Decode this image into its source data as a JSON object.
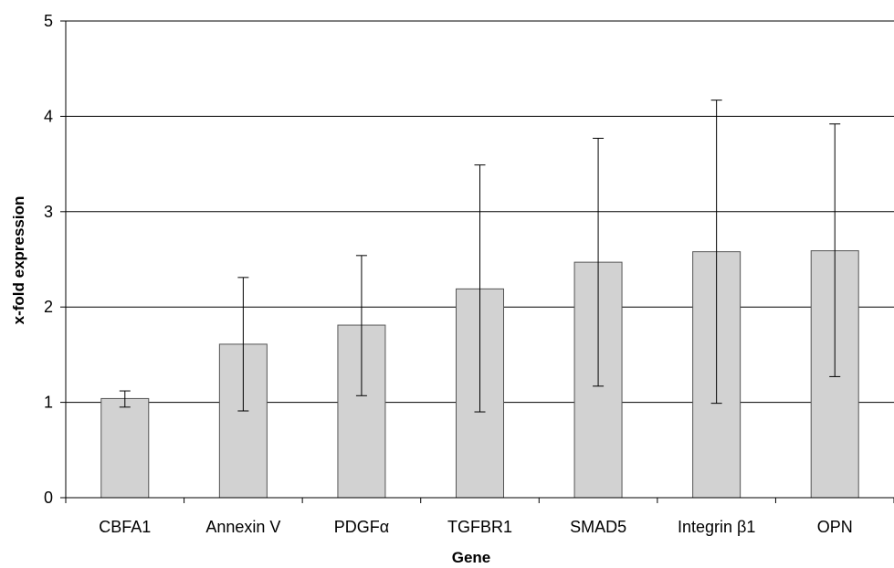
{
  "chart_data": {
    "type": "bar",
    "title": "",
    "xlabel": "Gene",
    "ylabel": "x-fold expression",
    "ylim": [
      0,
      5
    ],
    "yticks": [
      0,
      1,
      2,
      3,
      4,
      5
    ],
    "grid": true,
    "categories": [
      "CBFA1",
      "Annexin V",
      "PDGFα",
      "TGFBR1",
      "SMAD5",
      "Integrin β1",
      "OPN"
    ],
    "values": [
      1.04,
      1.61,
      1.81,
      2.19,
      2.47,
      2.58,
      2.59
    ],
    "error_low": [
      0.95,
      0.91,
      1.07,
      0.9,
      1.17,
      0.99,
      1.27
    ],
    "error_high": [
      1.12,
      2.31,
      2.54,
      3.49,
      3.77,
      4.17,
      3.92
    ],
    "colors": {
      "bar_fill": "#d2d2d2",
      "bar_stroke": "#555555",
      "grid": "#000000"
    }
  }
}
